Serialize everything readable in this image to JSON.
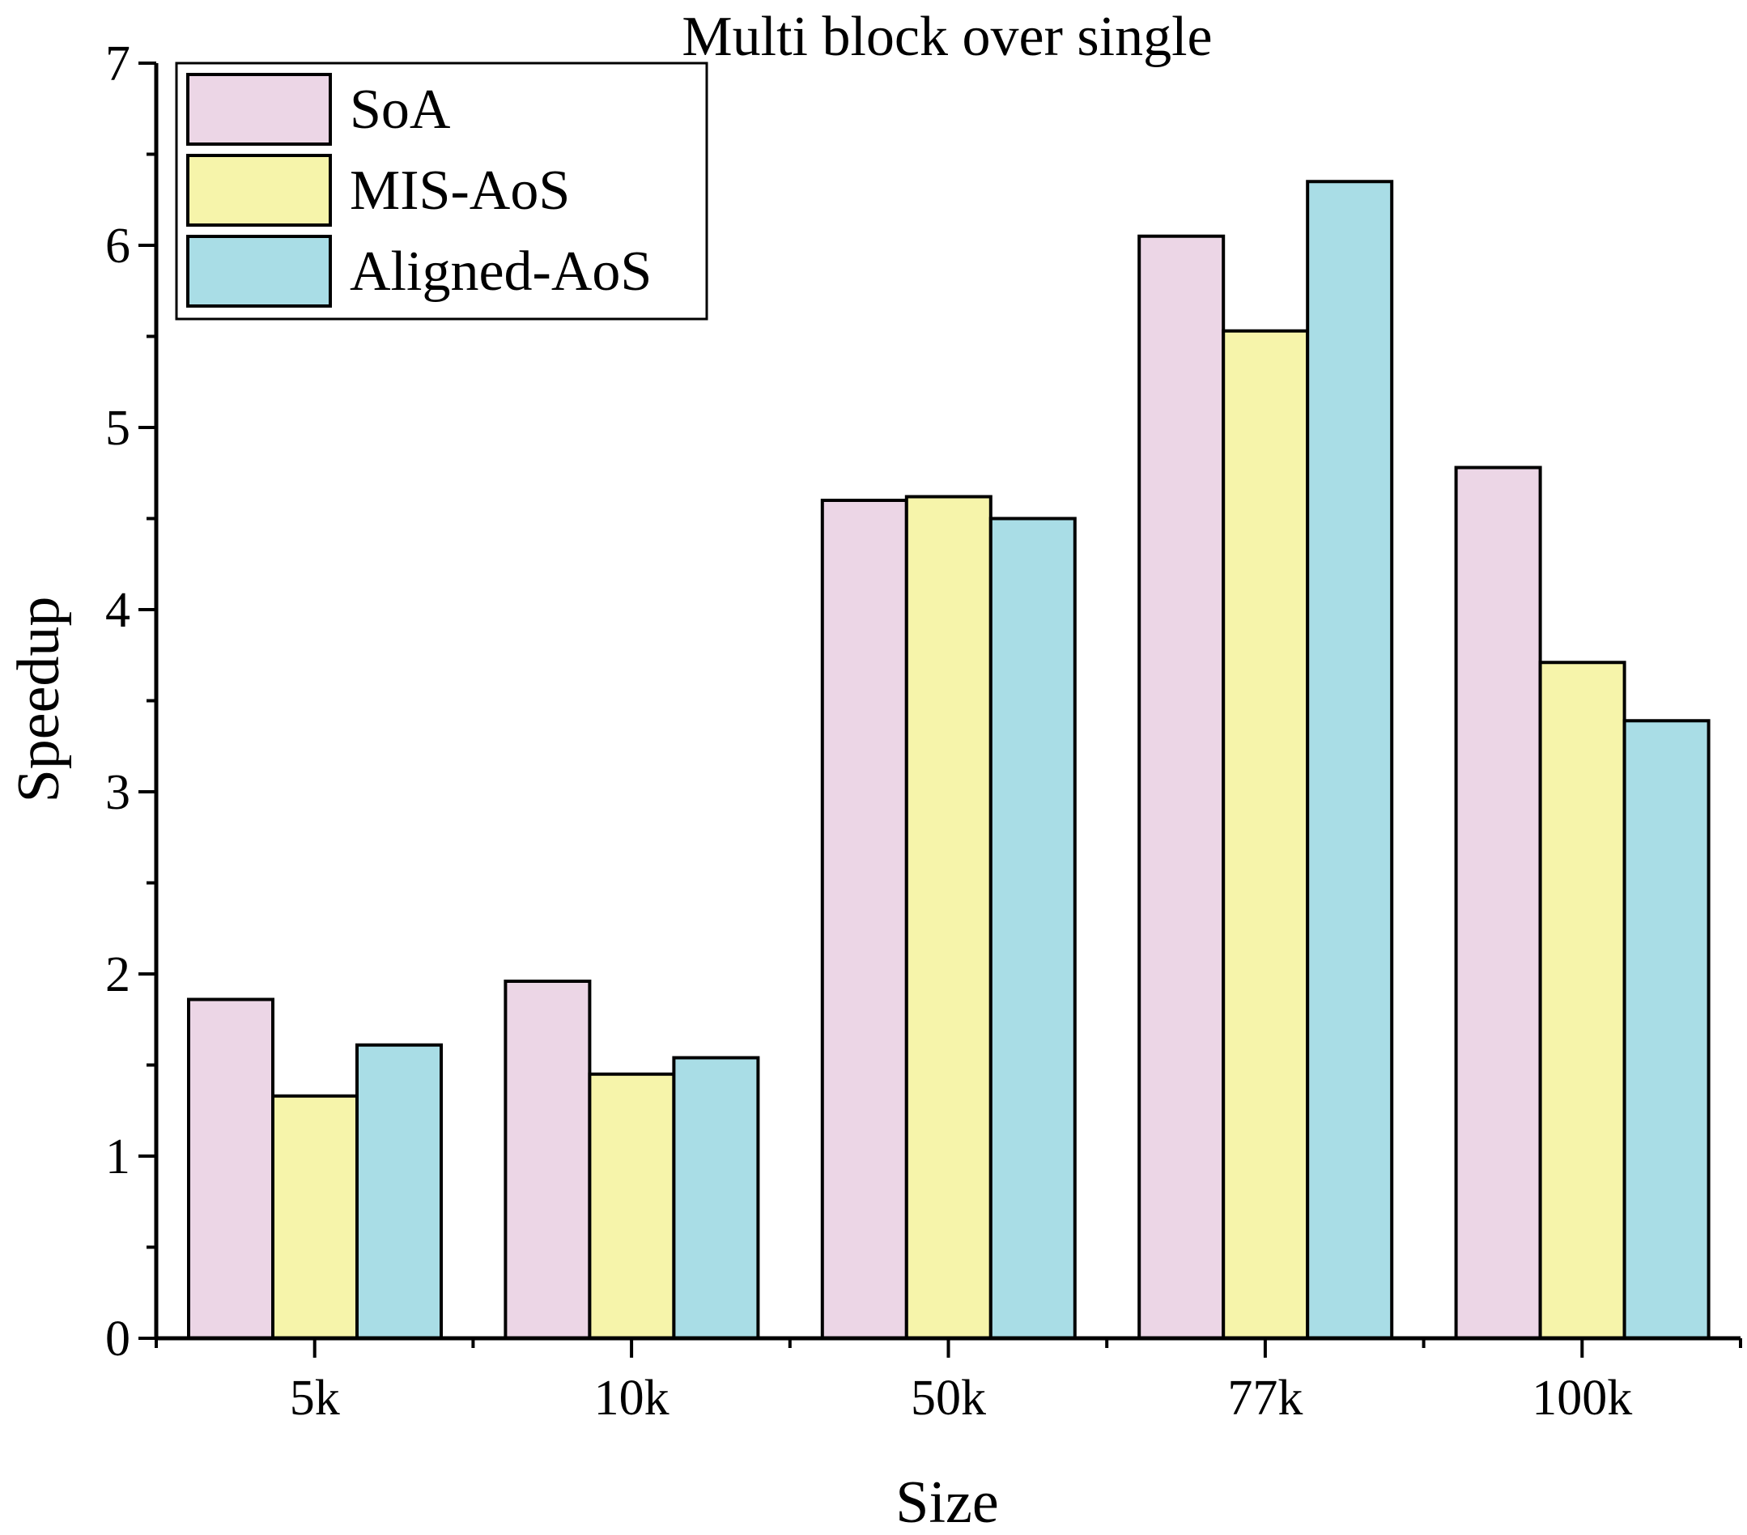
{
  "chart_data": {
    "type": "bar",
    "title": "Multi block over single",
    "xlabel": "Size",
    "ylabel": "Speedup",
    "categories": [
      "5k",
      "10k",
      "50k",
      "77k",
      "100k"
    ],
    "ylim": [
      0,
      7
    ],
    "yticks": [
      "0",
      "1",
      "2",
      "3",
      "4",
      "5",
      "6",
      "7"
    ],
    "legend_position": "top-left",
    "series": [
      {
        "name": "SoA",
        "color": "#ecd6e6",
        "values": [
          1.86,
          1.96,
          4.6,
          6.05,
          4.78
        ]
      },
      {
        "name": "MIS-AoS",
        "color": "#f6f4aa",
        "values": [
          1.33,
          1.45,
          4.62,
          5.53,
          3.71
        ]
      },
      {
        "name": "Aligned-AoS",
        "color": "#a9dde6",
        "values": [
          1.61,
          1.54,
          4.5,
          6.35,
          3.39
        ]
      }
    ]
  }
}
